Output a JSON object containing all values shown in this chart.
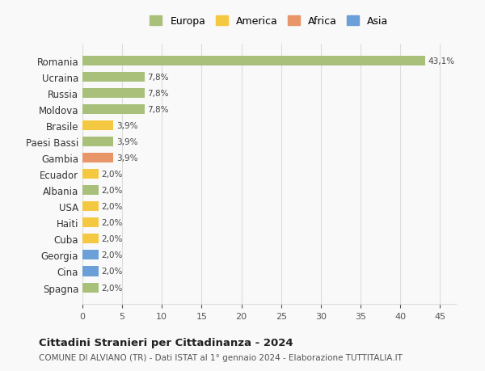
{
  "countries": [
    "Romania",
    "Ucraina",
    "Russia",
    "Moldova",
    "Brasile",
    "Paesi Bassi",
    "Gambia",
    "Ecuador",
    "Albania",
    "USA",
    "Haiti",
    "Cuba",
    "Georgia",
    "Cina",
    "Spagna"
  ],
  "values": [
    43.1,
    7.8,
    7.8,
    7.8,
    3.9,
    3.9,
    3.9,
    2.0,
    2.0,
    2.0,
    2.0,
    2.0,
    2.0,
    2.0,
    2.0
  ],
  "labels": [
    "43,1%",
    "7,8%",
    "7,8%",
    "7,8%",
    "3,9%",
    "3,9%",
    "3,9%",
    "2,0%",
    "2,0%",
    "2,0%",
    "2,0%",
    "2,0%",
    "2,0%",
    "2,0%",
    "2,0%"
  ],
  "continents": [
    "Europa",
    "Europa",
    "Europa",
    "Europa",
    "America",
    "Europa",
    "Africa",
    "America",
    "Europa",
    "America",
    "America",
    "America",
    "Asia",
    "Asia",
    "Europa"
  ],
  "continent_colors": {
    "Europa": "#a8c07a",
    "America": "#f5c842",
    "Africa": "#e8956a",
    "Asia": "#6a9fd8"
  },
  "legend_order": [
    "Europa",
    "America",
    "Africa",
    "Asia"
  ],
  "xlim": [
    0,
    47
  ],
  "xticks": [
    0,
    5,
    10,
    15,
    20,
    25,
    30,
    35,
    40,
    45
  ],
  "bg_color": "#f9f9f9",
  "grid_color": "#dddddd",
  "title": "Cittadini Stranieri per Cittadinanza - 2024",
  "subtitle": "COMUNE DI ALVIANO (TR) - Dati ISTAT al 1° gennaio 2024 - Elaborazione TUTTITALIA.IT",
  "bar_height": 0.6
}
